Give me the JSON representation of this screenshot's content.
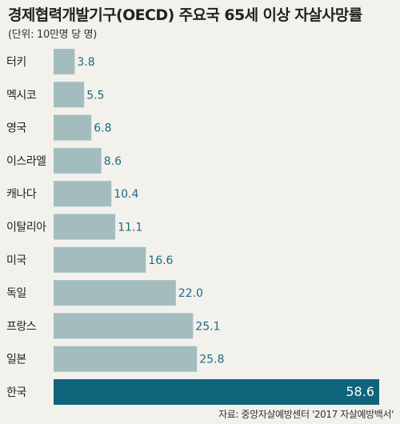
{
  "chart_data": {
    "type": "bar",
    "orientation": "horizontal",
    "title": "경제협력개발기구(OECD) 주요국 65세 이상 자살사망률",
    "unit": "(단위: 10만명 당 명)",
    "source": "자료: 중앙자살예방센터 '2017 자살예방백서'",
    "categories": [
      "터키",
      "멕시코",
      "영국",
      "이스라엘",
      "캐나다",
      "이탈리아",
      "미국",
      "독일",
      "프랑스",
      "일본",
      "한국"
    ],
    "values": [
      3.8,
      5.5,
      6.8,
      8.6,
      10.4,
      11.1,
      16.6,
      22.0,
      25.1,
      25.8,
      58.6
    ],
    "value_labels": [
      "3.8",
      "5.5",
      "6.8",
      "8.6",
      "10.4",
      "11.1",
      "16.6",
      "22.0",
      "25.1",
      "25.8",
      "58.6"
    ],
    "highlight_index": 10,
    "colors": {
      "bar": "#a3bdbf",
      "highlight": "#10647b",
      "background": "#f2f1ec",
      "value_text": "#1d6b82"
    },
    "xlim": [
      0,
      58.6
    ]
  }
}
